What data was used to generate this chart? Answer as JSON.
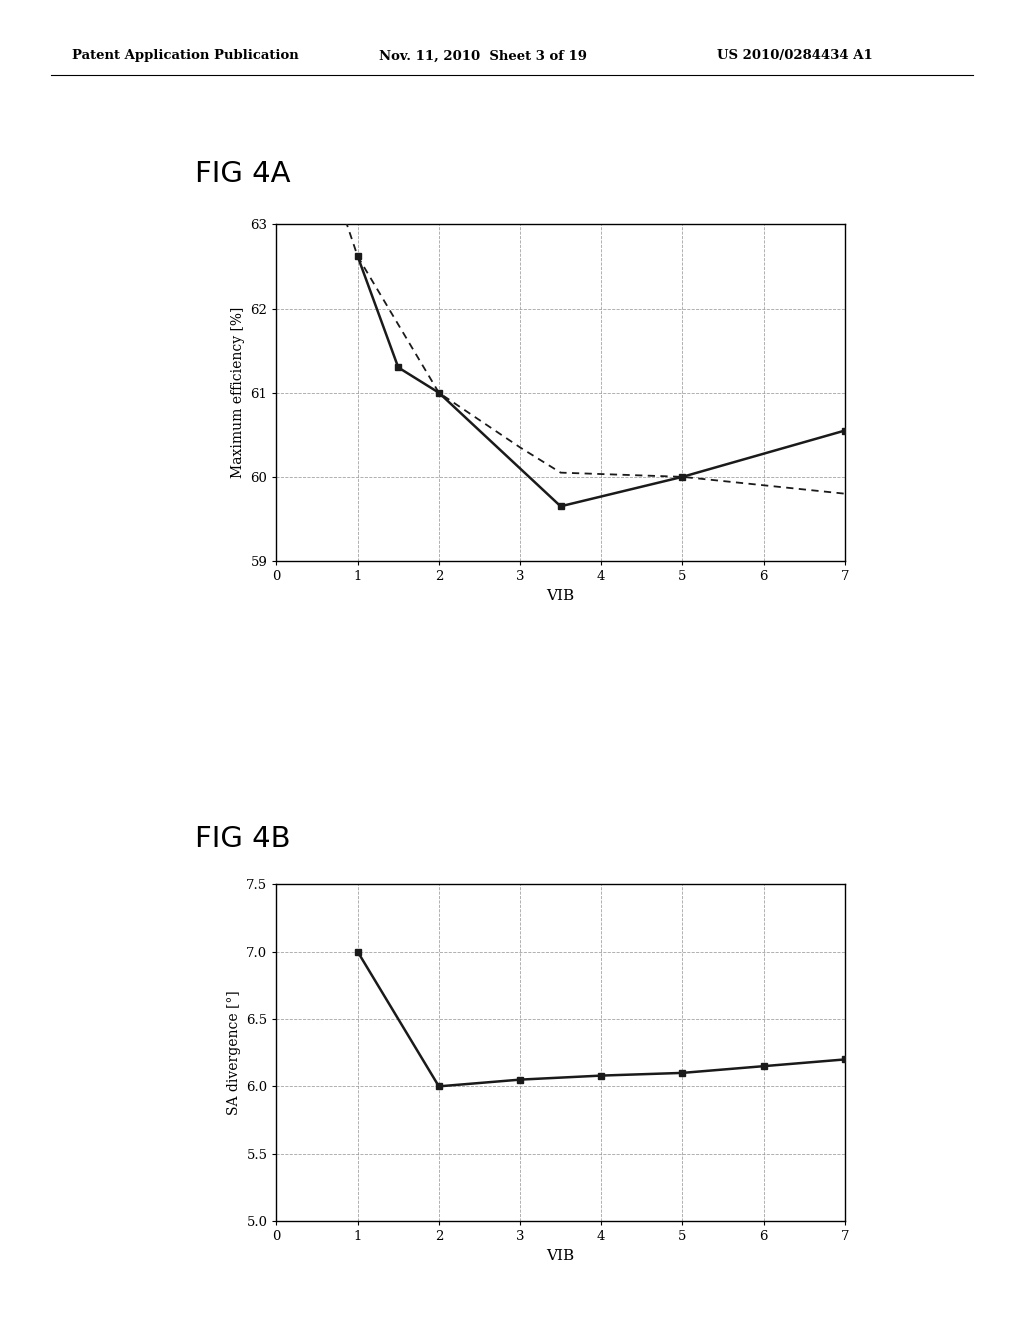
{
  "header_left": "Patent Application Publication",
  "header_center": "Nov. 11, 2010  Sheet 3 of 19",
  "header_right": "US 2010/0284434 A1",
  "fig4a_title": "FIG 4A",
  "fig4a_xlabel": "VIB",
  "fig4a_ylabel": "Maximum efficiency [%]",
  "fig4a_xlim": [
    0,
    7
  ],
  "fig4a_ylim": [
    59,
    63
  ],
  "fig4a_yticks": [
    59,
    60,
    61,
    62,
    63
  ],
  "fig4a_xticks": [
    0,
    1,
    2,
    3,
    4,
    5,
    6,
    7
  ],
  "fig4a_solid_x": [
    1.0,
    1.5,
    2.0,
    3.5,
    5.0,
    7.0
  ],
  "fig4a_solid_y": [
    62.62,
    61.3,
    61.0,
    59.65,
    60.0,
    60.55
  ],
  "fig4a_dashed_x": [
    0.85,
    1.0,
    2.0,
    3.0,
    3.5,
    5.0,
    6.0,
    7.0
  ],
  "fig4a_dashed_y": [
    63.05,
    62.62,
    61.0,
    60.35,
    60.05,
    60.0,
    59.9,
    59.8
  ],
  "fig4b_title": "FIG 4B",
  "fig4b_xlabel": "VIB",
  "fig4b_ylabel": "SA divergence [°]",
  "fig4b_xlim": [
    0,
    7
  ],
  "fig4b_ylim": [
    5.0,
    7.5
  ],
  "fig4b_yticks": [
    5.0,
    5.5,
    6.0,
    6.5,
    7.0,
    7.5
  ],
  "fig4b_xticks": [
    0,
    1,
    2,
    3,
    4,
    5,
    6,
    7
  ],
  "fig4b_solid_x": [
    1.0,
    2.0,
    3.0,
    4.0,
    5.0,
    6.0,
    7.0
  ],
  "fig4b_solid_y": [
    7.0,
    6.0,
    6.05,
    6.08,
    6.1,
    6.15,
    6.2
  ],
  "line_color": "#1a1a1a",
  "bg_color": "#ffffff",
  "grid_color": "#999999",
  "marker": "s",
  "marker_size": 4.5
}
